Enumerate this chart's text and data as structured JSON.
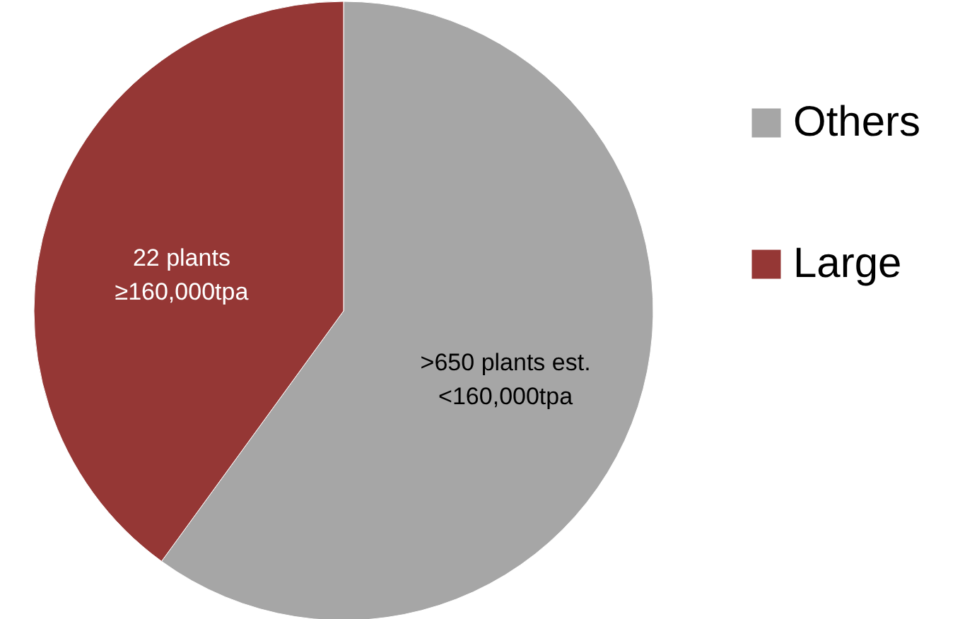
{
  "chart_data": {
    "type": "pie",
    "categories": [
      "Others",
      "Large"
    ],
    "values": [
      60,
      40
    ],
    "colors": [
      "#a6a6a6",
      "#953735"
    ],
    "annotations": [
      ">650 plants est.\n<160,000tpa",
      "22 plants\n≥160,000tpa"
    ],
    "legend": "right"
  }
}
